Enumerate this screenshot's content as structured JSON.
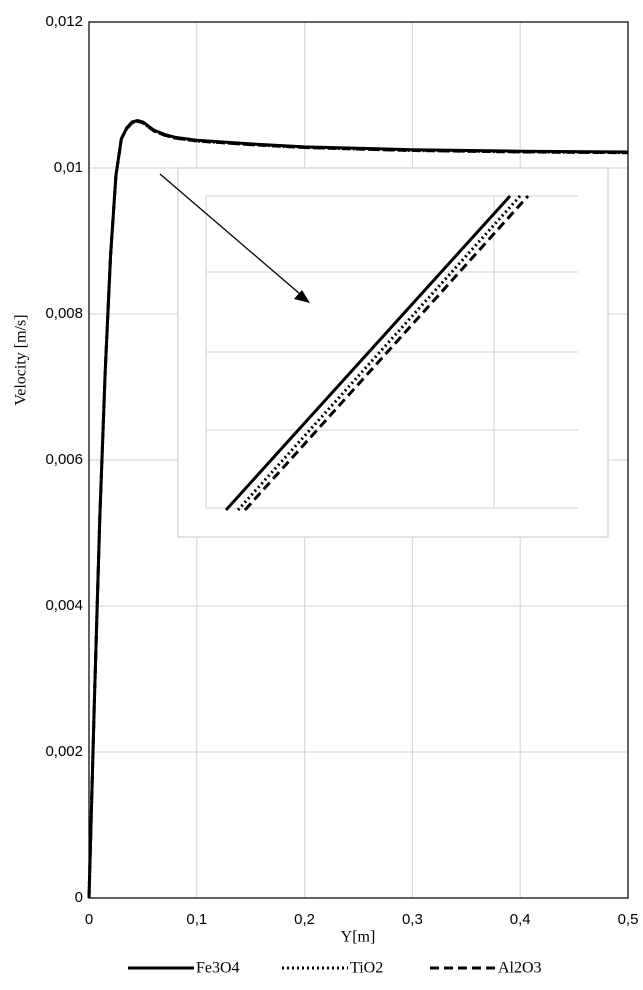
{
  "chart_data": {
    "type": "line",
    "x_label": "Y[m]",
    "y_label": "Velocity [m/s]",
    "x": [
      0,
      0.005,
      0.01,
      0.015,
      0.02,
      0.025,
      0.03,
      0.035,
      0.04,
      0.045,
      0.05,
      0.06,
      0.07,
      0.08,
      0.1,
      0.15,
      0.2,
      0.3,
      0.4,
      0.5
    ],
    "series": [
      {
        "name": "Fe3O4",
        "color": "#000000",
        "line_style": "solid",
        "values": [
          0,
          0.0027,
          0.0052,
          0.0072,
          0.0088,
          0.0099,
          0.0104,
          0.01055,
          0.01063,
          0.01065,
          0.01063,
          0.01052,
          0.01046,
          0.01042,
          0.01038,
          0.01033,
          0.01029,
          0.01025,
          0.01023,
          0.01022
        ]
      },
      {
        "name": "TiO2",
        "color": "#000000",
        "line_style": "dotted",
        "values": [
          0,
          0.0027,
          0.0052,
          0.0072,
          0.0088,
          0.0099,
          0.0104,
          0.01054,
          0.01062,
          0.01064,
          0.01062,
          0.01051,
          0.01045,
          0.01041,
          0.01037,
          0.01032,
          0.01028,
          0.01024,
          0.01022,
          0.01021
        ]
      },
      {
        "name": "Al2O3",
        "color": "#000000",
        "line_style": "dashed",
        "values": [
          0,
          0.0027,
          0.0052,
          0.0072,
          0.0088,
          0.0099,
          0.0104,
          0.01054,
          0.01062,
          0.01064,
          0.01062,
          0.01051,
          0.01045,
          0.01041,
          0.01037,
          0.01032,
          0.01028,
          0.01024,
          0.01022,
          0.01021
        ]
      }
    ],
    "xlim": [
      0,
      0.5
    ],
    "xticks": [
      0,
      {
        "value": 0.1,
        "label": "0,1"
      },
      {
        "value": 0.2,
        "label": "0,2"
      },
      {
        "value": 0.3,
        "label": "0,3"
      },
      {
        "value": 0.4,
        "label": "0,4"
      },
      {
        "value": 0.5,
        "label": "0,5"
      }
    ],
    "ylim": [
      0,
      0.012
    ],
    "yticks": [
      0,
      {
        "value": 0.002,
        "label": "0,002"
      },
      {
        "value": 0.004,
        "label": "0,004"
      },
      {
        "value": 0.006,
        "label": "0,006"
      },
      {
        "value": 0.008,
        "label": "0,008"
      },
      {
        "value": 0.01,
        "label": "0,01"
      },
      {
        "value": 0.012,
        "label": "0,012"
      }
    ],
    "grid": true,
    "legend": "bottom"
  }
}
